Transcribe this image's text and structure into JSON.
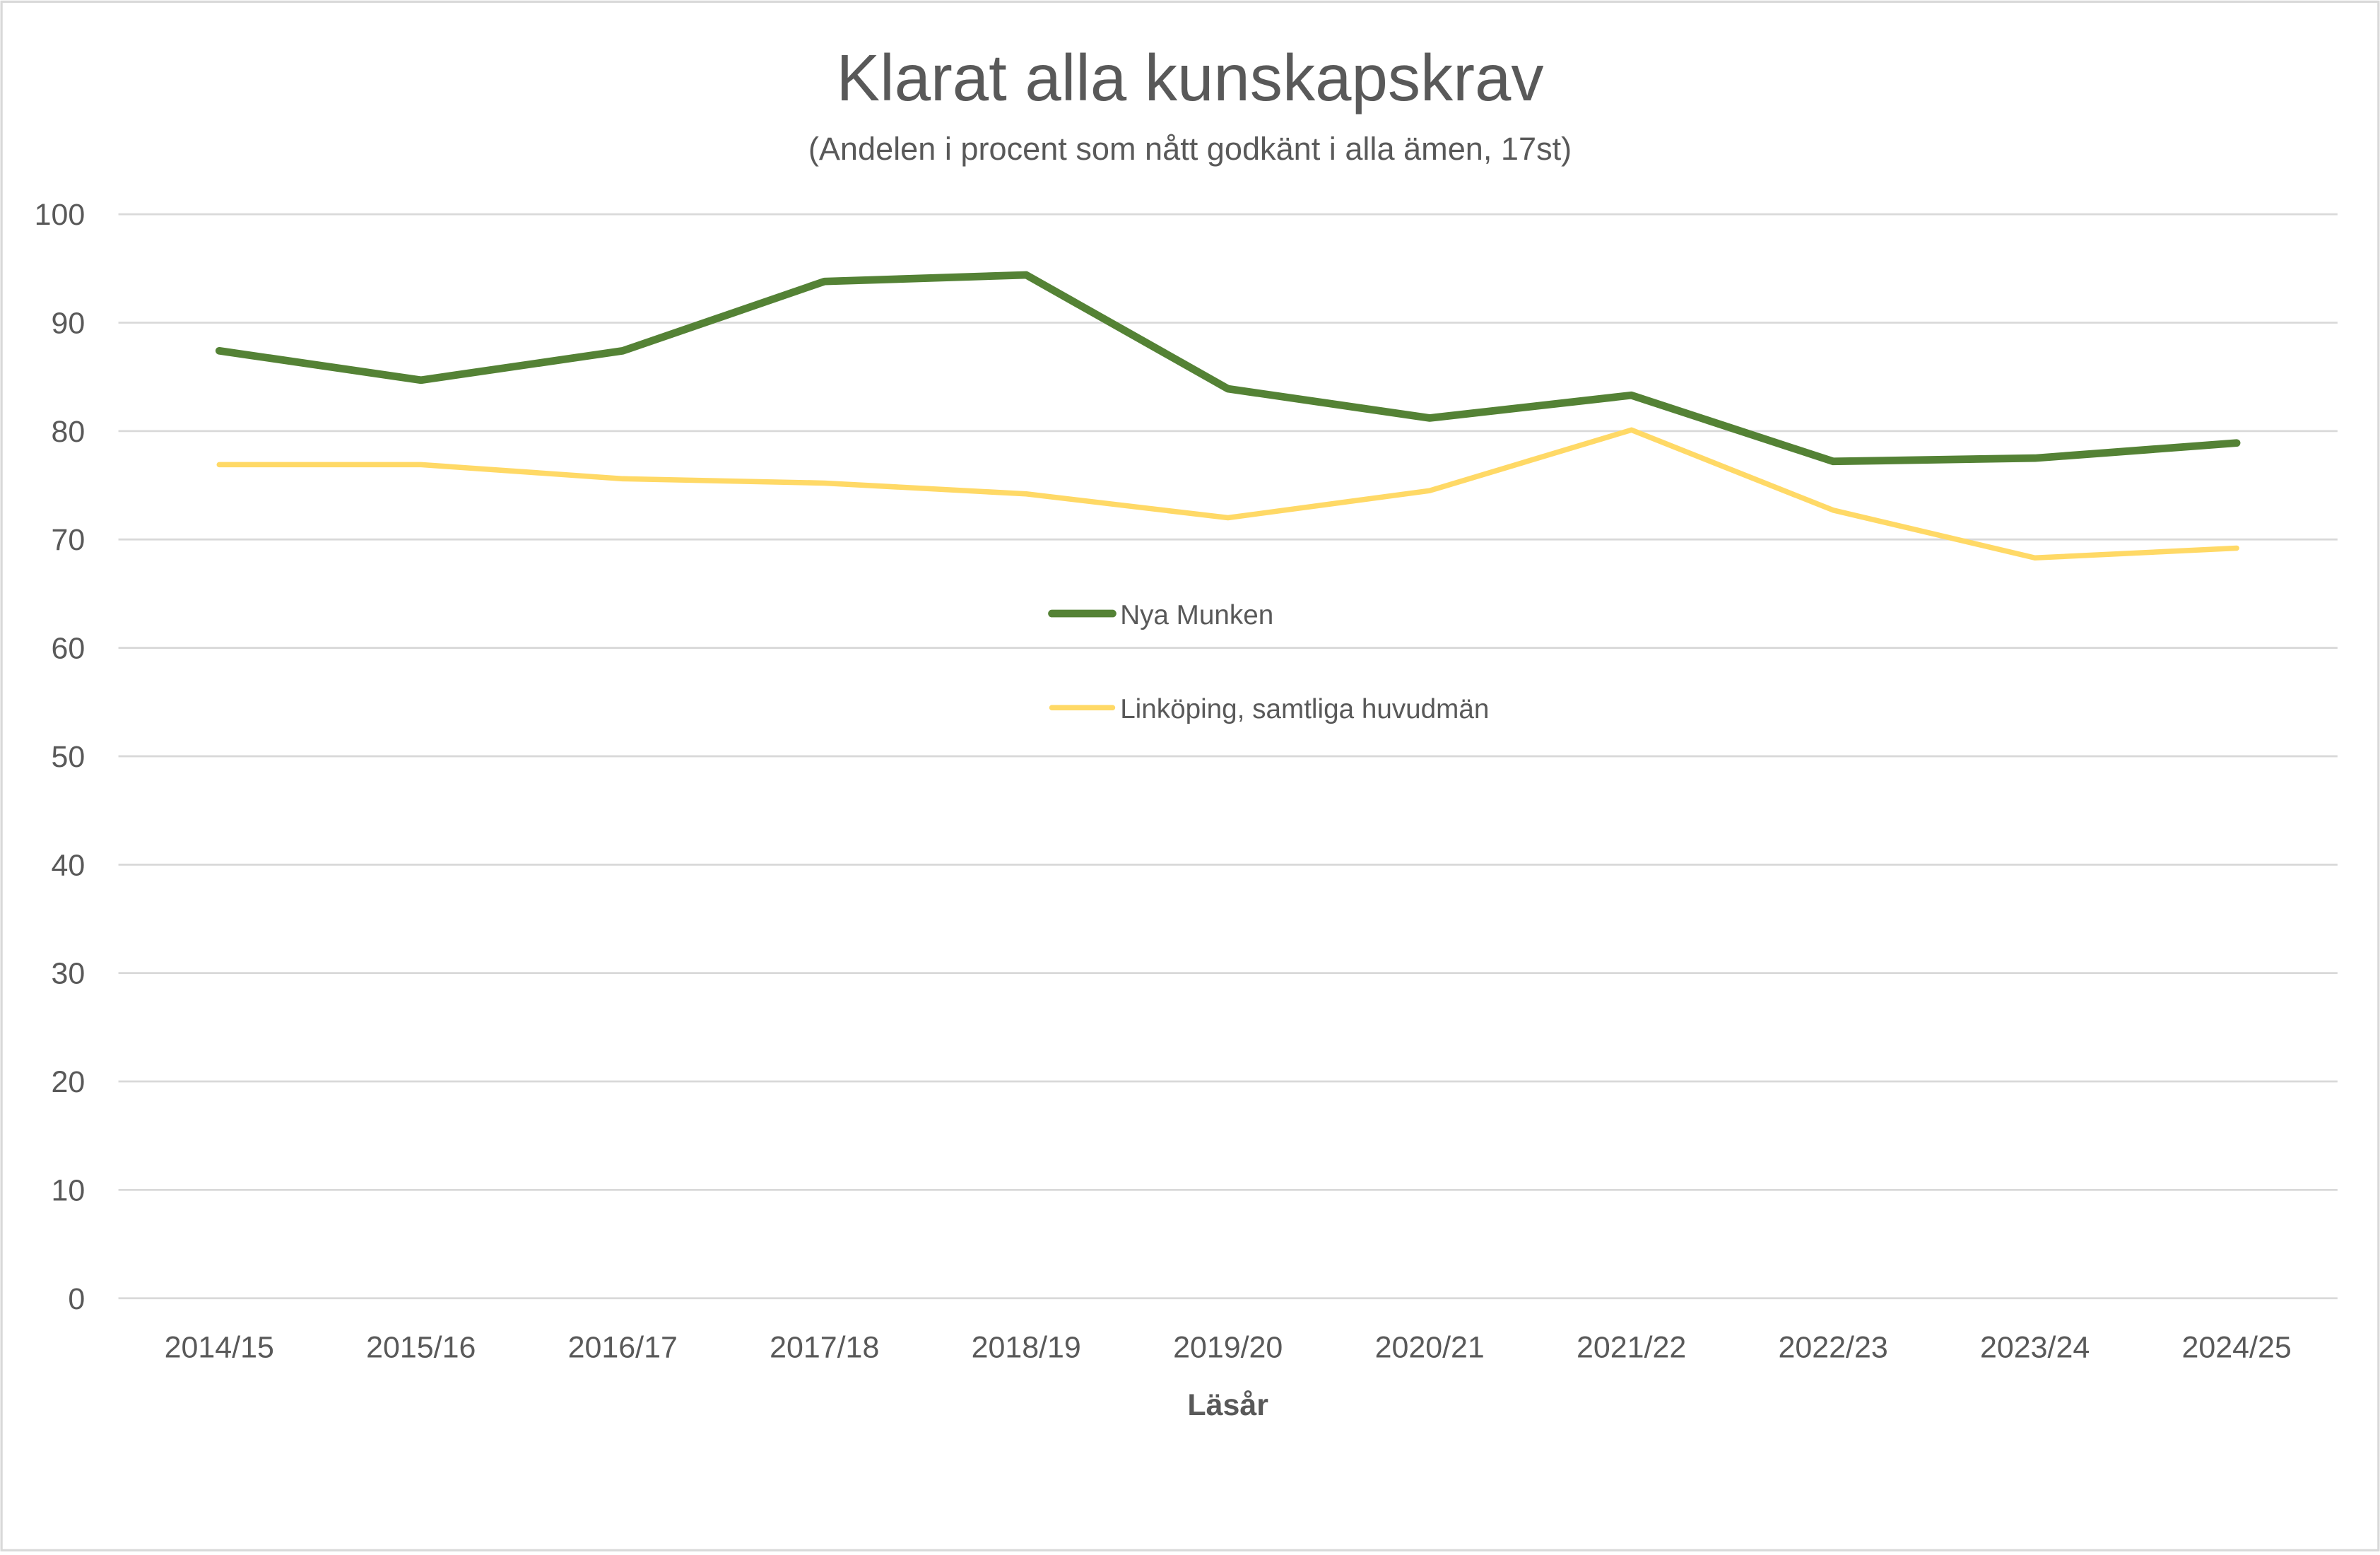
{
  "chart_data": {
    "type": "line",
    "title": "Klarat alla kunskapskrav",
    "subtitle": "(Andelen i procent som nått godkänt i alla ämen, 17st)",
    "xlabel": "Läsår",
    "ylabel": "",
    "ylim": [
      0,
      100
    ],
    "yticks": [
      0,
      10,
      20,
      30,
      40,
      50,
      60,
      70,
      80,
      90,
      100
    ],
    "grid": true,
    "legend_position": "center",
    "categories": [
      "2014/15",
      "2015/16",
      "2016/17",
      "2017/18",
      "2018/19",
      "2019/20",
      "2020/21",
      "2021/22",
      "2022/23",
      "2023/24",
      "2024/25"
    ],
    "series": [
      {
        "name": "Nya Munken",
        "color": "#548235",
        "values": [
          87.4,
          84.7,
          87.4,
          93.8,
          94.4,
          83.9,
          81.2,
          83.3,
          77.2,
          77.5,
          78.9
        ]
      },
      {
        "name": "Linköping, samtliga huvudmän",
        "color": "#FFD966",
        "values": [
          76.9,
          76.9,
          75.6,
          75.2,
          74.2,
          72.0,
          74.5,
          80.1,
          72.7,
          68.3,
          69.2
        ]
      }
    ]
  }
}
